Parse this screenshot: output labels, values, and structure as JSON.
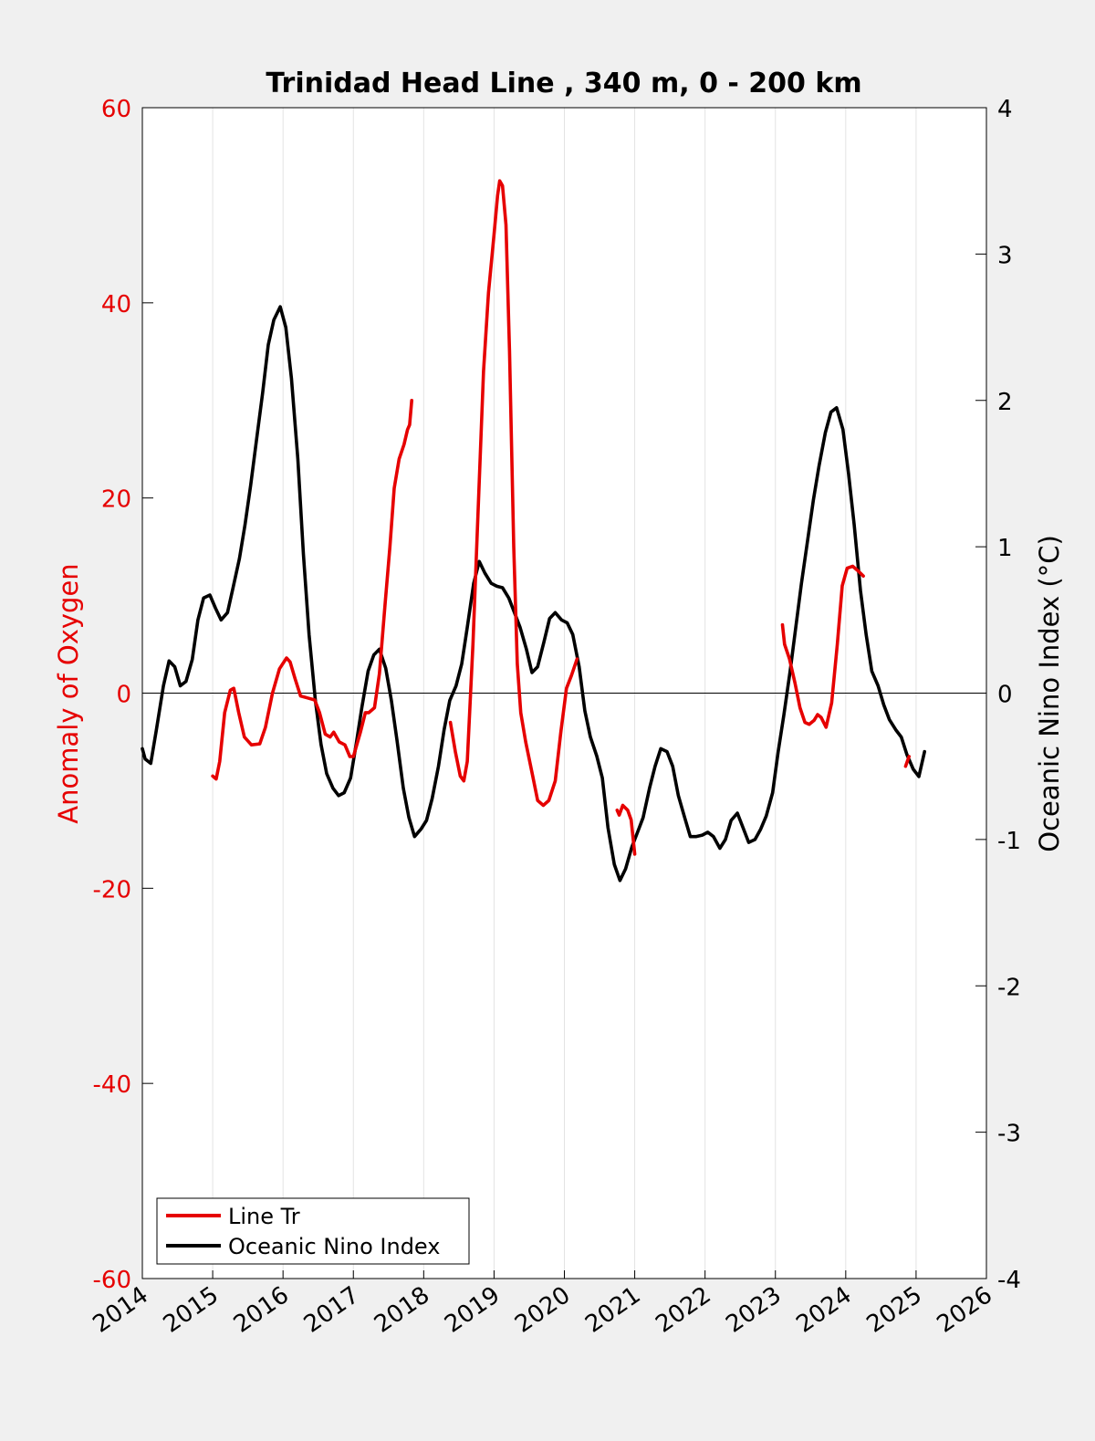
{
  "chart_data": {
    "type": "line",
    "title": "Trinidad Head Line , 340 m, 0 - 200 km",
    "xlabel": "",
    "ylabel_left": "Anomaly of Oxygen",
    "ylabel_right": "Oceanic Nino Index (°C)",
    "xlim": [
      2014,
      2026
    ],
    "ylim_left": [
      -60,
      60
    ],
    "ylim_right": [
      -4,
      4
    ],
    "x_ticks": [
      "2014",
      "2015",
      "2016",
      "2017",
      "2018",
      "2019",
      "2020",
      "2021",
      "2022",
      "2023",
      "2024",
      "2025",
      "2026"
    ],
    "y_ticks_left": [
      "-60",
      "-40",
      "-20",
      "0",
      "20",
      "40",
      "60"
    ],
    "y_ticks_right": [
      "-4",
      "-3",
      "-2",
      "-1",
      "0",
      "1",
      "2",
      "3",
      "4"
    ],
    "grid": "vertical",
    "legend_position": "bottom-left",
    "colors": {
      "line_tr": "#e60000",
      "oni": "#000000",
      "left_axis": "#e60000",
      "right_axis": "#000000"
    },
    "series": [
      {
        "name": "Line Tr",
        "axis": "left",
        "segments": [
          [
            [
              2015.0,
              -8.5
            ],
            [
              2015.05,
              -8.8
            ],
            [
              2015.1,
              -7
            ],
            [
              2015.17,
              -2
            ],
            [
              2015.25,
              0.3
            ],
            [
              2015.3,
              0.5
            ],
            [
              2015.37,
              -2
            ],
            [
              2015.45,
              -4.5
            ],
            [
              2015.55,
              -5.3
            ],
            [
              2015.67,
              -5.2
            ],
            [
              2015.75,
              -3.5
            ],
            [
              2015.85,
              0
            ],
            [
              2015.95,
              2.5
            ],
            [
              2016.05,
              3.6
            ],
            [
              2016.1,
              3.2
            ],
            [
              2016.17,
              1.5
            ],
            [
              2016.25,
              -0.3
            ],
            [
              2016.35,
              -0.5
            ],
            [
              2016.45,
              -0.7
            ],
            [
              2016.52,
              -2
            ],
            [
              2016.6,
              -4.2
            ],
            [
              2016.67,
              -4.5
            ],
            [
              2016.72,
              -4
            ],
            [
              2016.8,
              -5
            ],
            [
              2016.88,
              -5.3
            ],
            [
              2016.95,
              -6.5
            ],
            [
              2017.0,
              -6.5
            ],
            [
              2017.1,
              -4
            ],
            [
              2017.17,
              -2
            ],
            [
              2017.22,
              -2
            ],
            [
              2017.3,
              -1.5
            ],
            [
              2017.37,
              2
            ],
            [
              2017.45,
              9
            ],
            [
              2017.52,
              15
            ],
            [
              2017.58,
              21
            ],
            [
              2017.65,
              24
            ],
            [
              2017.72,
              25.5
            ],
            [
              2017.77,
              27
            ],
            [
              2017.8,
              27.5
            ],
            [
              2017.83,
              30
            ]
          ],
          [
            [
              2018.38,
              -3
            ],
            [
              2018.45,
              -6
            ],
            [
              2018.52,
              -8.5
            ],
            [
              2018.57,
              -9
            ],
            [
              2018.62,
              -7
            ],
            [
              2018.7,
              5
            ],
            [
              2018.78,
              20
            ],
            [
              2018.85,
              33
            ],
            [
              2018.92,
              41
            ],
            [
              2019.0,
              47
            ],
            [
              2019.05,
              51
            ],
            [
              2019.08,
              52.5
            ],
            [
              2019.12,
              52
            ],
            [
              2019.17,
              48
            ],
            [
              2019.22,
              35
            ],
            [
              2019.28,
              15
            ],
            [
              2019.33,
              3
            ],
            [
              2019.38,
              -2
            ],
            [
              2019.45,
              -5
            ],
            [
              2019.55,
              -8.5
            ],
            [
              2019.62,
              -11
            ],
            [
              2019.7,
              -11.5
            ],
            [
              2019.78,
              -11
            ],
            [
              2019.87,
              -9
            ],
            [
              2019.95,
              -4
            ],
            [
              2020.03,
              0.5
            ],
            [
              2020.1,
              1.8
            ],
            [
              2020.18,
              3.5
            ]
          ],
          [
            [
              2020.75,
              -12
            ],
            [
              2020.78,
              -12.5
            ],
            [
              2020.83,
              -11.5
            ],
            [
              2020.9,
              -12
            ],
            [
              2020.95,
              -13
            ],
            [
              2021.0,
              -16.5
            ]
          ],
          [
            [
              2023.1,
              7
            ],
            [
              2023.13,
              5
            ],
            [
              2023.2,
              3.5
            ],
            [
              2023.28,
              1
            ],
            [
              2023.35,
              -1.5
            ],
            [
              2023.42,
              -3
            ],
            [
              2023.48,
              -3.2
            ],
            [
              2023.55,
              -2.8
            ],
            [
              2023.6,
              -2.2
            ],
            [
              2023.65,
              -2.5
            ],
            [
              2023.72,
              -3.5
            ],
            [
              2023.8,
              -1
            ],
            [
              2023.88,
              5
            ],
            [
              2023.95,
              11
            ],
            [
              2024.02,
              12.8
            ],
            [
              2024.1,
              13
            ],
            [
              2024.18,
              12.5
            ],
            [
              2024.25,
              12
            ]
          ],
          [
            [
              2024.85,
              -7.5
            ],
            [
              2024.9,
              -6.5
            ]
          ]
        ]
      },
      {
        "name": "Oceanic Nino Index",
        "axis": "right",
        "segments": [
          [
            [
              2014.0,
              -0.38
            ],
            [
              2014.04,
              -0.45
            ],
            [
              2014.12,
              -0.48
            ],
            [
              2014.2,
              -0.25
            ],
            [
              2014.3,
              0.05
            ],
            [
              2014.38,
              0.22
            ],
            [
              2014.46,
              0.18
            ],
            [
              2014.54,
              0.05
            ],
            [
              2014.62,
              0.08
            ],
            [
              2014.71,
              0.23
            ],
            [
              2014.79,
              0.5
            ],
            [
              2014.87,
              0.65
            ],
            [
              2014.96,
              0.67
            ],
            [
              2015.04,
              0.58
            ],
            [
              2015.12,
              0.5
            ],
            [
              2015.21,
              0.55
            ],
            [
              2015.29,
              0.72
            ],
            [
              2015.38,
              0.92
            ],
            [
              2015.46,
              1.15
            ],
            [
              2015.54,
              1.42
            ],
            [
              2015.62,
              1.72
            ],
            [
              2015.71,
              2.05
            ],
            [
              2015.79,
              2.38
            ],
            [
              2015.87,
              2.55
            ],
            [
              2015.96,
              2.64
            ],
            [
              2016.04,
              2.5
            ],
            [
              2016.12,
              2.15
            ],
            [
              2016.21,
              1.6
            ],
            [
              2016.29,
              0.95
            ],
            [
              2016.37,
              0.4
            ],
            [
              2016.46,
              -0.05
            ],
            [
              2016.54,
              -0.35
            ],
            [
              2016.62,
              -0.55
            ],
            [
              2016.71,
              -0.65
            ],
            [
              2016.79,
              -0.7
            ],
            [
              2016.87,
              -0.68
            ],
            [
              2016.96,
              -0.58
            ],
            [
              2017.04,
              -0.35
            ],
            [
              2017.12,
              -0.1
            ],
            [
              2017.21,
              0.15
            ],
            [
              2017.29,
              0.26
            ],
            [
              2017.37,
              0.3
            ],
            [
              2017.46,
              0.17
            ],
            [
              2017.54,
              -0.05
            ],
            [
              2017.62,
              -0.32
            ],
            [
              2017.71,
              -0.65
            ],
            [
              2017.79,
              -0.85
            ],
            [
              2017.87,
              -0.98
            ],
            [
              2017.96,
              -0.93
            ],
            [
              2018.04,
              -0.87
            ],
            [
              2018.12,
              -0.72
            ],
            [
              2018.21,
              -0.5
            ],
            [
              2018.29,
              -0.25
            ],
            [
              2018.37,
              -0.05
            ],
            [
              2018.46,
              0.05
            ],
            [
              2018.54,
              0.2
            ],
            [
              2018.62,
              0.45
            ],
            [
              2018.71,
              0.75
            ],
            [
              2018.79,
              0.9
            ],
            [
              2018.87,
              0.82
            ],
            [
              2018.96,
              0.75
            ],
            [
              2019.04,
              0.73
            ],
            [
              2019.12,
              0.72
            ],
            [
              2019.21,
              0.65
            ],
            [
              2019.29,
              0.55
            ],
            [
              2019.37,
              0.45
            ],
            [
              2019.46,
              0.3
            ],
            [
              2019.54,
              0.14
            ],
            [
              2019.62,
              0.18
            ],
            [
              2019.71,
              0.35
            ],
            [
              2019.79,
              0.51
            ],
            [
              2019.87,
              0.55
            ],
            [
              2019.96,
              0.5
            ],
            [
              2020.04,
              0.48
            ],
            [
              2020.12,
              0.4
            ],
            [
              2020.21,
              0.18
            ],
            [
              2020.29,
              -0.12
            ],
            [
              2020.37,
              -0.3
            ],
            [
              2020.46,
              -0.43
            ],
            [
              2020.54,
              -0.58
            ],
            [
              2020.62,
              -0.92
            ],
            [
              2020.71,
              -1.17
            ],
            [
              2020.79,
              -1.28
            ],
            [
              2020.87,
              -1.2
            ],
            [
              2020.96,
              -1.05
            ],
            [
              2021.04,
              -0.95
            ],
            [
              2021.12,
              -0.85
            ],
            [
              2021.21,
              -0.65
            ],
            [
              2021.29,
              -0.5
            ],
            [
              2021.37,
              -0.38
            ],
            [
              2021.46,
              -0.4
            ],
            [
              2021.54,
              -0.5
            ],
            [
              2021.62,
              -0.7
            ],
            [
              2021.71,
              -0.85
            ],
            [
              2021.79,
              -0.98
            ],
            [
              2021.87,
              -0.98
            ],
            [
              2021.96,
              -0.97
            ],
            [
              2022.04,
              -0.95
            ],
            [
              2022.12,
              -0.98
            ],
            [
              2022.21,
              -1.06
            ],
            [
              2022.29,
              -1.0
            ],
            [
              2022.37,
              -0.87
            ],
            [
              2022.46,
              -0.82
            ],
            [
              2022.54,
              -0.92
            ],
            [
              2022.62,
              -1.02
            ],
            [
              2022.71,
              -1.0
            ],
            [
              2022.79,
              -0.93
            ],
            [
              2022.87,
              -0.84
            ],
            [
              2022.96,
              -0.68
            ],
            [
              2023.04,
              -0.4
            ],
            [
              2023.12,
              -0.15
            ],
            [
              2023.21,
              0.15
            ],
            [
              2023.29,
              0.45
            ],
            [
              2023.37,
              0.75
            ],
            [
              2023.46,
              1.05
            ],
            [
              2023.54,
              1.32
            ],
            [
              2023.62,
              1.55
            ],
            [
              2023.71,
              1.78
            ],
            [
              2023.79,
              1.92
            ],
            [
              2023.87,
              1.95
            ],
            [
              2023.96,
              1.8
            ],
            [
              2024.04,
              1.5
            ],
            [
              2024.12,
              1.15
            ],
            [
              2024.21,
              0.7
            ],
            [
              2024.29,
              0.4
            ],
            [
              2024.37,
              0.15
            ],
            [
              2024.46,
              0.05
            ],
            [
              2024.54,
              -0.08
            ],
            [
              2024.62,
              -0.18
            ],
            [
              2024.71,
              -0.25
            ],
            [
              2024.79,
              -0.3
            ],
            [
              2024.87,
              -0.42
            ],
            [
              2024.96,
              -0.52
            ],
            [
              2025.04,
              -0.57
            ],
            [
              2025.12,
              -0.4
            ]
          ]
        ]
      }
    ]
  }
}
